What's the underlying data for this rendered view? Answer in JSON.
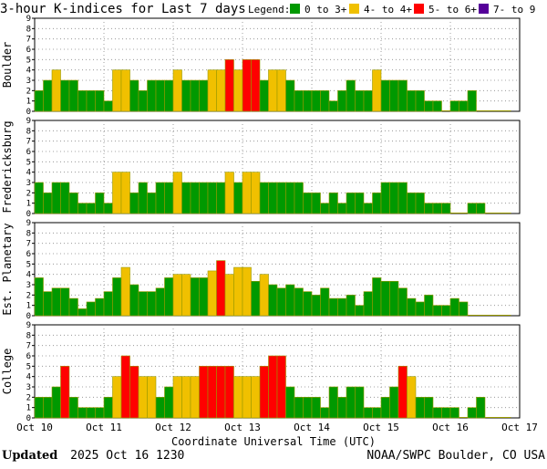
{
  "title": "3-hour K-indices for Last 7 days",
  "legend": {
    "label": "Legend:",
    "entries": [
      {
        "text": "0 to 3+",
        "color": "#009900"
      },
      {
        "text": "4- to 4+",
        "color": "#f0c000"
      },
      {
        "text": "5- to 6+",
        "color": "#ff0000"
      },
      {
        "text": "7- to 9",
        "color": "#550099"
      }
    ]
  },
  "footer": {
    "updated_label": "Updated",
    "updated_value": "2025 Oct 16 1230",
    "credit": "NOAA/SWPC Boulder, CO USA"
  },
  "colors": {
    "low": "#009900",
    "mid": "#f0c000",
    "high": "#ff0000",
    "severe": "#550099",
    "border": "#999900"
  },
  "chart_data": {
    "type": "bar",
    "xlabel": "Coordinate Universal Time (UTC)",
    "x_ticks": [
      "Oct 10",
      "Oct 11",
      "Oct 12",
      "Oct 13",
      "Oct 14",
      "Oct 15",
      "Oct 16",
      "Oct 17"
    ],
    "y_ticks": [
      "0",
      "1",
      "2",
      "3",
      "4",
      "5",
      "6",
      "7",
      "8",
      "9"
    ],
    "ylim": [
      0,
      9
    ],
    "grid": "dotted",
    "series": [
      {
        "name": "Boulder",
        "values": [
          2,
          3,
          4,
          3,
          3,
          2,
          2,
          2,
          1,
          4,
          4,
          3,
          2,
          3,
          3,
          3,
          4,
          3,
          3,
          3,
          4,
          4,
          5,
          4,
          5,
          5,
          3,
          4,
          4,
          3,
          2,
          2,
          2,
          2,
          1,
          2,
          3,
          2,
          2,
          4,
          3,
          3,
          3,
          2,
          2,
          1,
          1,
          0,
          1,
          1,
          2,
          0,
          0,
          0,
          0
        ]
      },
      {
        "name": "Fredericksburg",
        "values": [
          3,
          2,
          3,
          3,
          2,
          1,
          1,
          2,
          1,
          4,
          4,
          2,
          3,
          2,
          3,
          3,
          4,
          3,
          3,
          3,
          3,
          3,
          4,
          3,
          4,
          4,
          3,
          3,
          3,
          3,
          3,
          2,
          2,
          1,
          2,
          1,
          2,
          2,
          1,
          2,
          3,
          3,
          3,
          2,
          2,
          1,
          1,
          1,
          0,
          0,
          1,
          1,
          0,
          0,
          0
        ]
      },
      {
        "name": "Est. Planetary",
        "values": [
          3.67,
          2.33,
          2.67,
          2.67,
          1.67,
          0.67,
          1.33,
          1.67,
          2.33,
          3.67,
          4.67,
          3.0,
          2.33,
          2.33,
          2.67,
          3.67,
          4.0,
          4.0,
          3.67,
          3.67,
          4.33,
          5.33,
          4.0,
          4.67,
          4.67,
          3.33,
          4.0,
          3.0,
          2.67,
          3.0,
          2.67,
          2.33,
          2.0,
          2.67,
          1.67,
          1.67,
          2.0,
          1.0,
          2.33,
          3.67,
          3.33,
          3.33,
          2.67,
          1.67,
          1.33,
          2.0,
          1.0,
          1.0,
          1.67,
          1.33,
          0,
          0,
          0,
          0,
          0
        ]
      },
      {
        "name": "College",
        "values": [
          2,
          2,
          3,
          5,
          2,
          1,
          1,
          1,
          2,
          4,
          6,
          5,
          4,
          4,
          2,
          3,
          4,
          4,
          4,
          5,
          5,
          5,
          5,
          4,
          4,
          4,
          5,
          6,
          6,
          3,
          2,
          2,
          2,
          1,
          3,
          2,
          3,
          3,
          1,
          1,
          2,
          3,
          5,
          4,
          2,
          2,
          1,
          1,
          1,
          0,
          1,
          2,
          0,
          0,
          0
        ]
      }
    ]
  }
}
